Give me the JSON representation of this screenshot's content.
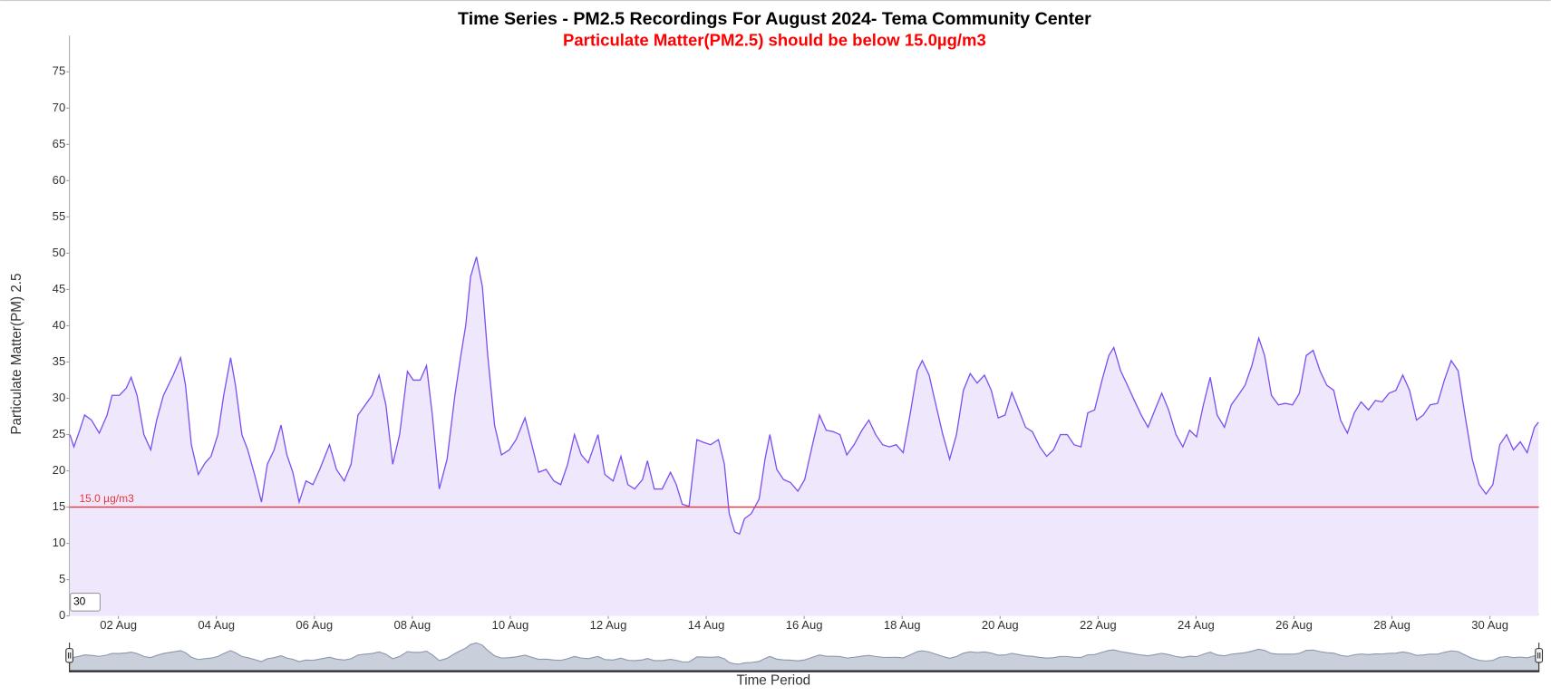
{
  "chart_data": {
    "type": "area",
    "title": "Time Series - PM2.5 Recordings For August 2024- Tema Community Center",
    "subtitle": "Particulate Matter(PM2.5) should be below 15.0µg/m3",
    "y_label": "Particulate Matter(PM) 2.5",
    "x_label": "Time Period",
    "input_value": "30",
    "color": "#7b4ff0",
    "fill_color": "#efe8fd",
    "threshold": {
      "value": 15,
      "label": "15.0 µg/m3",
      "color": "#e8353a"
    },
    "xlim": [
      1,
      31
    ],
    "ylim": [
      0,
      80
    ],
    "yticks": [
      0,
      5,
      10,
      15,
      20,
      25,
      30,
      35,
      40,
      45,
      50,
      55,
      60,
      65,
      70,
      75
    ],
    "xticks": [
      {
        "value": 2,
        "label": "02 Aug"
      },
      {
        "value": 4,
        "label": "04 Aug"
      },
      {
        "value": 6,
        "label": "06 Aug"
      },
      {
        "value": 8,
        "label": "08 Aug"
      },
      {
        "value": 10,
        "label": "10 Aug"
      },
      {
        "value": 12,
        "label": "12 Aug"
      },
      {
        "value": 14,
        "label": "14 Aug"
      },
      {
        "value": 16,
        "label": "16 Aug"
      },
      {
        "value": 18,
        "label": "18 Aug"
      },
      {
        "value": 20,
        "label": "20 Aug"
      },
      {
        "value": 22,
        "label": "22 Aug"
      },
      {
        "value": 24,
        "label": "24 Aug"
      },
      {
        "value": 26,
        "label": "26 Aug"
      },
      {
        "value": 28,
        "label": "28 Aug"
      },
      {
        "value": 30,
        "label": "30 Aug"
      }
    ],
    "grid": false,
    "x": [
      1.01,
      1.09,
      1.21,
      1.31,
      1.45,
      1.61,
      1.77,
      1.87,
      2.02,
      2.16,
      2.26,
      2.38,
      2.52,
      2.66,
      2.78,
      2.92,
      3.12,
      3.27,
      3.37,
      3.49,
      3.63,
      3.77,
      3.89,
      4.03,
      4.15,
      4.29,
      4.39,
      4.52,
      4.64,
      4.78,
      4.92,
      5.04,
      5.18,
      5.32,
      5.44,
      5.56,
      5.69,
      5.83,
      5.97,
      6.11,
      6.31,
      6.45,
      6.61,
      6.75,
      6.89,
      7.04,
      7.18,
      7.32,
      7.46,
      7.6,
      7.74,
      7.9,
      8.02,
      8.16,
      8.29,
      8.41,
      8.55,
      8.71,
      8.87,
      8.99,
      9.09,
      9.19,
      9.31,
      9.43,
      9.54,
      9.68,
      9.82,
      9.98,
      10.12,
      10.3,
      10.44,
      10.58,
      10.73,
      10.89,
      11.03,
      11.17,
      11.31,
      11.45,
      11.59,
      11.79,
      11.93,
      12.1,
      12.26,
      12.4,
      12.54,
      12.7,
      12.8,
      12.94,
      13.1,
      13.27,
      13.39,
      13.51,
      13.65,
      13.81,
      13.95,
      14.09,
      14.25,
      14.37,
      14.47,
      14.58,
      14.68,
      14.78,
      14.92,
      15.08,
      15.2,
      15.3,
      15.44,
      15.58,
      15.72,
      15.87,
      16.01,
      16.17,
      16.31,
      16.45,
      16.59,
      16.73,
      16.87,
      17.02,
      17.18,
      17.32,
      17.46,
      17.6,
      17.74,
      17.88,
      18.02,
      18.16,
      18.31,
      18.41,
      18.55,
      18.69,
      18.83,
      18.97,
      19.11,
      19.25,
      19.39,
      19.53,
      19.68,
      19.82,
      19.96,
      20.1,
      20.24,
      20.38,
      20.52,
      20.66,
      20.81,
      20.95,
      21.09,
      21.23,
      21.37,
      21.51,
      21.65,
      21.79,
      21.93,
      22.08,
      22.22,
      22.32,
      22.46,
      22.6,
      22.74,
      22.88,
      23.02,
      23.16,
      23.3,
      23.44,
      23.59,
      23.73,
      23.87,
      24.01,
      24.15,
      24.29,
      24.43,
      24.58,
      24.72,
      24.86,
      25.0,
      25.14,
      25.28,
      25.4,
      25.54,
      25.68,
      25.82,
      25.97,
      26.11,
      26.25,
      26.39,
      26.53,
      26.67,
      26.81,
      26.95,
      27.09,
      27.23,
      27.37,
      27.52,
      27.66,
      27.8,
      27.94,
      28.08,
      28.22,
      28.36,
      28.5,
      28.64,
      28.78,
      28.93,
      29.07,
      29.21,
      29.35,
      29.49,
      29.64,
      29.78,
      29.92,
      30.06,
      30.2,
      30.34,
      30.48,
      30.62,
      30.76,
      30.91,
      30.99
    ],
    "values": [
      25,
      23.3,
      25.6,
      27.7,
      27,
      25.2,
      27.7,
      30.4,
      30.4,
      31.4,
      32.9,
      30.4,
      25,
      22.9,
      27,
      30.4,
      33.2,
      35.6,
      31.8,
      23.6,
      19.5,
      21.1,
      22,
      25,
      30.4,
      35.6,
      31.8,
      25,
      22.9,
      19.5,
      15.7,
      20.9,
      22.9,
      26.3,
      22.2,
      19.8,
      15.7,
      18.6,
      18.1,
      20.2,
      23.6,
      20.2,
      18.6,
      20.9,
      27.7,
      29.1,
      30.4,
      33.2,
      29.1,
      20.9,
      25,
      33.7,
      32.5,
      32.5,
      34.5,
      27.7,
      17.5,
      21.6,
      30.4,
      35.9,
      40,
      46.8,
      49.5,
      45.4,
      35.9,
      26.3,
      22.2,
      22.9,
      24.3,
      27.3,
      23.6,
      19.8,
      20.2,
      18.6,
      18.1,
      20.9,
      25,
      22.2,
      21.1,
      25,
      19.5,
      18.6,
      22,
      18.1,
      17.5,
      18.8,
      21.4,
      17.5,
      17.5,
      19.8,
      18.1,
      15.4,
      15.1,
      24.3,
      23.9,
      23.6,
      24.3,
      20.9,
      14.1,
      11.6,
      11.3,
      13.4,
      14.1,
      16.1,
      21.6,
      25,
      20.2,
      18.8,
      18.4,
      17.2,
      18.8,
      23.6,
      27.7,
      25.6,
      25.4,
      25,
      22.2,
      23.6,
      25.6,
      27,
      25,
      23.6,
      23.3,
      23.6,
      22.5,
      27.7,
      33.8,
      35.2,
      33.2,
      29.1,
      25,
      21.6,
      25,
      31.1,
      33.4,
      32.1,
      33.2,
      31.1,
      27.3,
      27.7,
      30.8,
      28.4,
      26,
      25.4,
      23.3,
      22,
      22.9,
      25,
      25,
      23.6,
      23.3,
      28,
      28.4,
      32.5,
      35.9,
      37,
      33.8,
      31.8,
      29.7,
      27.7,
      26,
      28.4,
      30.7,
      28.4,
      25,
      23.3,
      25.6,
      24.7,
      29.1,
      32.9,
      27.7,
      26,
      29.1,
      30.4,
      31.8,
      34.5,
      38.3,
      35.9,
      30.4,
      29.1,
      29.3,
      29.1,
      30.7,
      35.9,
      36.6,
      33.8,
      31.8,
      31.1,
      27,
      25.2,
      28,
      29.5,
      28.4,
      29.7,
      29.5,
      30.7,
      31.1,
      33.2,
      31.1,
      27,
      27.7,
      29.1,
      29.3,
      32.5,
      35.2,
      33.8,
      27.7,
      21.6,
      18.1,
      16.8,
      18.1,
      23.6,
      25,
      22.9,
      24,
      22.5,
      26,
      26.7
    ]
  }
}
